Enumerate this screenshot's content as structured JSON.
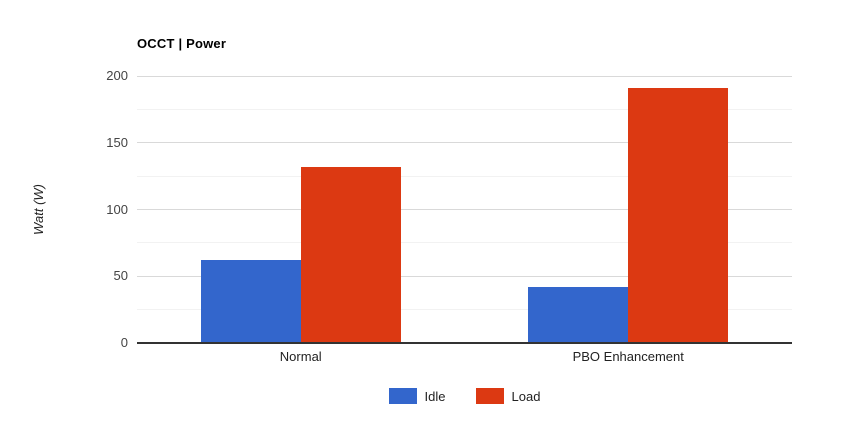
{
  "chart_data": {
    "type": "bar",
    "title": "OCCT | Power",
    "categories": [
      "Normal",
      "PBO Enhancement"
    ],
    "series": [
      {
        "name": "Idle",
        "color": "#3366CC",
        "values": [
          62,
          42
        ]
      },
      {
        "name": "Load",
        "color": "#DC3912",
        "values": [
          132,
          191
        ]
      }
    ],
    "xlabel": "",
    "ylabel": "Watt (W)",
    "ylim": [
      0,
      200
    ],
    "yticks": [
      0,
      50,
      100,
      150,
      200
    ],
    "minor_grid_step": 25,
    "grid": true,
    "legend_position": "bottom",
    "colors": {
      "idle": "#3366CC",
      "load": "#DC3912",
      "major_gridline": "#d9d9d9",
      "minor_gridline": "#f2f2f2",
      "axis_line": "#333333",
      "tick_label": "#444444",
      "title_text": "#000000"
    }
  }
}
